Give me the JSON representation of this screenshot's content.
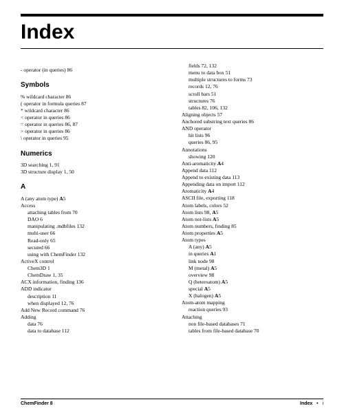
{
  "title": "Index",
  "footer": {
    "left": "ChemFinder 8",
    "right_label": "Index",
    "right_sep": "•",
    "right_page": "i"
  },
  "entries": [
    {
      "t": "entry",
      "text": "- operator (in queries) 86",
      "spaceBefore": 6
    },
    {
      "t": "heading",
      "text": "Symbols"
    },
    {
      "t": "entry",
      "text": "% wildcard character 86"
    },
    {
      "t": "entry",
      "text": "( operator in formula queries 87"
    },
    {
      "t": "entry",
      "text": "* wildcard character 86"
    },
    {
      "t": "entry",
      "text": "< operator in queries 86"
    },
    {
      "t": "entry",
      "text": "= operator in queries 86, 87"
    },
    {
      "t": "entry",
      "text": "> operator in queries 86"
    },
    {
      "t": "entry",
      "text": "\\ operator in queries 95"
    },
    {
      "t": "heading",
      "text": "Numerics"
    },
    {
      "t": "entry",
      "text": "3D searching 1, 91"
    },
    {
      "t": "entry",
      "text": "3D structure display 1, 50"
    },
    {
      "t": "heading",
      "text": "A"
    },
    {
      "t": "entry",
      "html": "A (any atom type) <b>A</b>5"
    },
    {
      "t": "entry",
      "text": "Access"
    },
    {
      "t": "sub1",
      "text": "attaching tables from 70"
    },
    {
      "t": "sub1",
      "text": "DAO 6"
    },
    {
      "t": "sub1",
      "text": "manipulating .mdbfiles 132"
    },
    {
      "t": "sub1",
      "text": "multi-user 66"
    },
    {
      "t": "sub1",
      "text": "Read-only 65"
    },
    {
      "t": "sub1",
      "text": "secured 66"
    },
    {
      "t": "sub1",
      "text": "using with ChemFinder 132"
    },
    {
      "t": "entry",
      "text": "ActiveX control"
    },
    {
      "t": "sub1",
      "text": "Chem3D 1"
    },
    {
      "t": "sub1",
      "text": "ChemDraw 1, 35"
    },
    {
      "t": "entry",
      "text": "ACX information, finding 136"
    },
    {
      "t": "entry",
      "text": "ADD indicator"
    },
    {
      "t": "sub1",
      "text": "description 11"
    },
    {
      "t": "sub1",
      "text": "when displayed 12, 76"
    },
    {
      "t": "entry",
      "text": "Add New Record command 76"
    },
    {
      "t": "entry",
      "text": "Adding"
    },
    {
      "t": "sub1",
      "text": "data 76"
    },
    {
      "t": "sub1",
      "text": "data to database 112"
    },
    {
      "t": "sub1",
      "text": "fields 72, 132"
    },
    {
      "t": "sub1",
      "text": "menu to data box 51"
    },
    {
      "t": "sub1",
      "text": "multiple structures to forms 73"
    },
    {
      "t": "sub1",
      "text": "records 12, 76"
    },
    {
      "t": "sub1",
      "text": "scroll bars 51"
    },
    {
      "t": "sub1",
      "text": "structures 76"
    },
    {
      "t": "sub1",
      "text": "tables 82, 106, 132"
    },
    {
      "t": "entry",
      "text": "Aligning objects 57"
    },
    {
      "t": "entry",
      "text": "Anchored substring text queries 86"
    },
    {
      "t": "entry",
      "text": "AND operator"
    },
    {
      "t": "sub1",
      "text": "hit lists 96"
    },
    {
      "t": "sub1",
      "text": "queries 86, 95"
    },
    {
      "t": "entry",
      "text": "Annotations"
    },
    {
      "t": "sub1",
      "text": "showing 120"
    },
    {
      "t": "entry",
      "html": "Anti-aromaticity <b>A</b>4"
    },
    {
      "t": "entry",
      "text": "Append data 112"
    },
    {
      "t": "entry",
      "text": "Append to existing data 113"
    },
    {
      "t": "entry",
      "text": "Appending data on import 112"
    },
    {
      "t": "entry",
      "html": "Aromaticity <b>A</b>4"
    },
    {
      "t": "entry",
      "text": "ASCII file, exporting 118"
    },
    {
      "t": "entry",
      "text": "Atom labels, colors 52"
    },
    {
      "t": "entry",
      "html": "Atom lists 98, <b>A</b>5"
    },
    {
      "t": "entry",
      "html": "Atom not-lists <b>A</b>5"
    },
    {
      "t": "entry",
      "text": "Atom numbers, finding 85"
    },
    {
      "t": "entry",
      "html": "Atom properties <b>A</b>5"
    },
    {
      "t": "entry",
      "text": "Atom types"
    },
    {
      "t": "sub1",
      "html": "A (any) <b>A</b>5"
    },
    {
      "t": "sub1",
      "html": "in queries <b>A</b>1"
    },
    {
      "t": "sub1",
      "text": "link node 98"
    },
    {
      "t": "sub1",
      "html": "M (metal) <b>A</b>5"
    },
    {
      "t": "sub1",
      "text": "overview 98"
    },
    {
      "t": "sub1",
      "html": "Q (heteroatom) <b>A</b>5"
    },
    {
      "t": "sub1",
      "html": "special <b>A</b>5"
    },
    {
      "t": "sub1",
      "html": "X (halogen) <b>A</b>5"
    },
    {
      "t": "entry",
      "text": "Atom-atom mapping"
    },
    {
      "t": "sub1",
      "text": "reaction queries 93"
    },
    {
      "t": "entry",
      "text": "Attaching"
    },
    {
      "t": "sub1",
      "text": "non file-based databases 71"
    },
    {
      "t": "sub1",
      "text": "tables from file-based database 70"
    }
  ]
}
